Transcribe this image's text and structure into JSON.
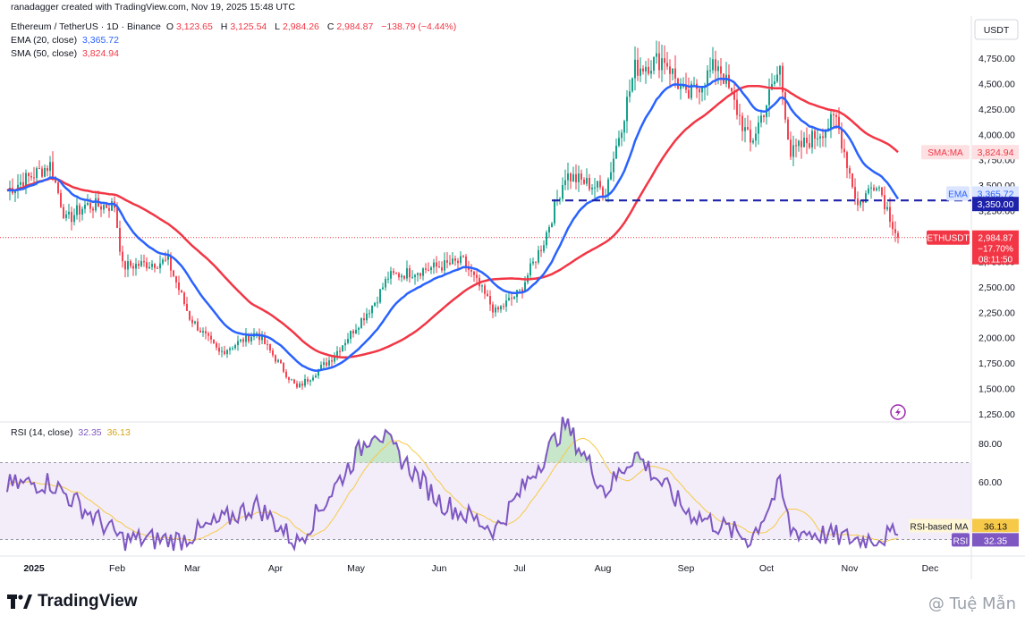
{
  "header": {
    "created_by": "ranadagger created with TradingView.com, Nov 19, 2025 15:48 UTC",
    "symbol": "Ethereum / TetherUS · 1D · Binance",
    "ohlc": {
      "o_label": "O",
      "o": "3,123.65",
      "h_label": "H",
      "h": "3,125.54",
      "l_label": "L",
      "l": "2,984.26",
      "c_label": "C",
      "c": "2,984.87",
      "change": "−138.79 (−4.44%)"
    },
    "ema": {
      "label": "EMA (20, close)",
      "value": "3,365.72"
    },
    "sma": {
      "label": "SMA (50, close)",
      "value": "3,824.94"
    }
  },
  "price_axis": {
    "currency": "USDT",
    "ticks": [
      "4,750.00",
      "4,500.00",
      "4,250.00",
      "4,000.00",
      "3,750.00",
      "3,500.00",
      "3,250.00",
      "2,750.00",
      "2,500.00",
      "2,250.00",
      "2,000.00",
      "1,750.00",
      "1,500.00",
      "1,250.00"
    ],
    "tick_values": [
      4750,
      4500,
      4250,
      4000,
      3750,
      3500,
      3250,
      2750,
      2500,
      2250,
      2000,
      1750,
      1500,
      1250
    ],
    "labels": {
      "sma": {
        "name": "SMA:MA",
        "value": "3,824.94",
        "color": "#f23645",
        "price": 3824.94
      },
      "ema": {
        "name": "EMA",
        "value": "3,365.72",
        "color": "#2962ff",
        "price": 3365.72
      },
      "level": {
        "value": "3,350.00",
        "price": 3350
      },
      "last": {
        "name": "ETHUSDT",
        "value": "2,984.87",
        "change": "−17.70%",
        "countdown": "08:11:50",
        "color": "#f23645",
        "price": 2984.87
      }
    }
  },
  "rsi": {
    "label": "RSI (14, close)",
    "value": "32.35",
    "ma_value": "36.13",
    "ma_name": "RSI-based MA",
    "name": "RSI",
    "ticks": [
      "80.00",
      "60.00"
    ],
    "tick_values": [
      80,
      60
    ],
    "upper": 70,
    "lower": 30,
    "colors": {
      "rsi": "#7e57c2",
      "ma": "#f7c948",
      "band": "#ede7f6",
      "overbought": "#c8e6c9"
    }
  },
  "time_axis": {
    "labels": [
      "2025",
      "Feb",
      "Mar",
      "Apr",
      "May",
      "Jun",
      "Jul",
      "Aug",
      "Sep",
      "Oct",
      "Nov",
      "Dec"
    ]
  },
  "footer": {
    "logo_text": "TradingView",
    "watermark": "@ Tuệ Mẫn"
  },
  "colors": {
    "up": "#089981",
    "down": "#f23645",
    "ema": "#2962ff",
    "sma": "#f23645",
    "level": "#1e22aa"
  },
  "chart_data": {
    "type": "candlestick",
    "interval": "1D",
    "symbol": "ETHUSDT",
    "close_key_points": [
      {
        "date": "2024-12-22",
        "close": 3450
      },
      {
        "date": "2025-01-07",
        "close": 3700
      },
      {
        "date": "2025-01-13",
        "close": 3150
      },
      {
        "date": "2025-01-20",
        "close": 3300
      },
      {
        "date": "2025-01-31",
        "close": 3300
      },
      {
        "date": "2025-02-03",
        "close": 2700
      },
      {
        "date": "2025-02-20",
        "close": 2750
      },
      {
        "date": "2025-02-28",
        "close": 2200
      },
      {
        "date": "2025-03-11",
        "close": 1850
      },
      {
        "date": "2025-03-25",
        "close": 2050
      },
      {
        "date": "2025-04-09",
        "close": 1500
      },
      {
        "date": "2025-04-22",
        "close": 1800
      },
      {
        "date": "2025-05-08",
        "close": 2350
      },
      {
        "date": "2025-05-13",
        "close": 2600
      },
      {
        "date": "2025-06-10",
        "close": 2750
      },
      {
        "date": "2025-06-22",
        "close": 2250
      },
      {
        "date": "2025-07-01",
        "close": 2450
      },
      {
        "date": "2025-07-10",
        "close": 2950
      },
      {
        "date": "2025-07-18",
        "close": 3600
      },
      {
        "date": "2025-08-02",
        "close": 3450
      },
      {
        "date": "2025-08-13",
        "close": 4650
      },
      {
        "date": "2025-08-24",
        "close": 4750
      },
      {
        "date": "2025-09-01",
        "close": 4350
      },
      {
        "date": "2025-09-13",
        "close": 4700
      },
      {
        "date": "2025-09-25",
        "close": 3900
      },
      {
        "date": "2025-10-06",
        "close": 4650
      },
      {
        "date": "2025-10-10",
        "close": 3800
      },
      {
        "date": "2025-10-27",
        "close": 4150
      },
      {
        "date": "2025-11-04",
        "close": 3300
      },
      {
        "date": "2025-11-11",
        "close": 3550
      },
      {
        "date": "2025-11-19",
        "close": 2984.87
      }
    ],
    "ema20": {
      "name": "EMA (20, close)",
      "last": 3365.72
    },
    "sma50": {
      "name": "SMA (50, close)",
      "last": 3824.94
    },
    "horizontal_level": 3350,
    "rsi_key_points": [
      {
        "date": "2024-12-22",
        "rsi": 58
      },
      {
        "date": "2025-01-07",
        "rsi": 60
      },
      {
        "date": "2025-02-03",
        "rsi": 30
      },
      {
        "date": "2025-02-25",
        "rsi": 30
      },
      {
        "date": "2025-03-25",
        "rsi": 48
      },
      {
        "date": "2025-04-09",
        "rsi": 28
      },
      {
        "date": "2025-04-22",
        "rsi": 55
      },
      {
        "date": "2025-05-08",
        "rsi": 88
      },
      {
        "date": "2025-06-01",
        "rsi": 50
      },
      {
        "date": "2025-06-22",
        "rsi": 35
      },
      {
        "date": "2025-07-18",
        "rsi": 90
      },
      {
        "date": "2025-08-02",
        "rsi": 55
      },
      {
        "date": "2025-08-13",
        "rsi": 75
      },
      {
        "date": "2025-09-01",
        "rsi": 45
      },
      {
        "date": "2025-09-25",
        "rsi": 30
      },
      {
        "date": "2025-10-06",
        "rsi": 58
      },
      {
        "date": "2025-10-10",
        "rsi": 35
      },
      {
        "date": "2025-11-04",
        "rsi": 30
      },
      {
        "date": "2025-11-19",
        "rsi": 32.35
      }
    ],
    "price_range": [
      1250,
      4950
    ],
    "rsi_range": [
      20,
      95
    ]
  }
}
